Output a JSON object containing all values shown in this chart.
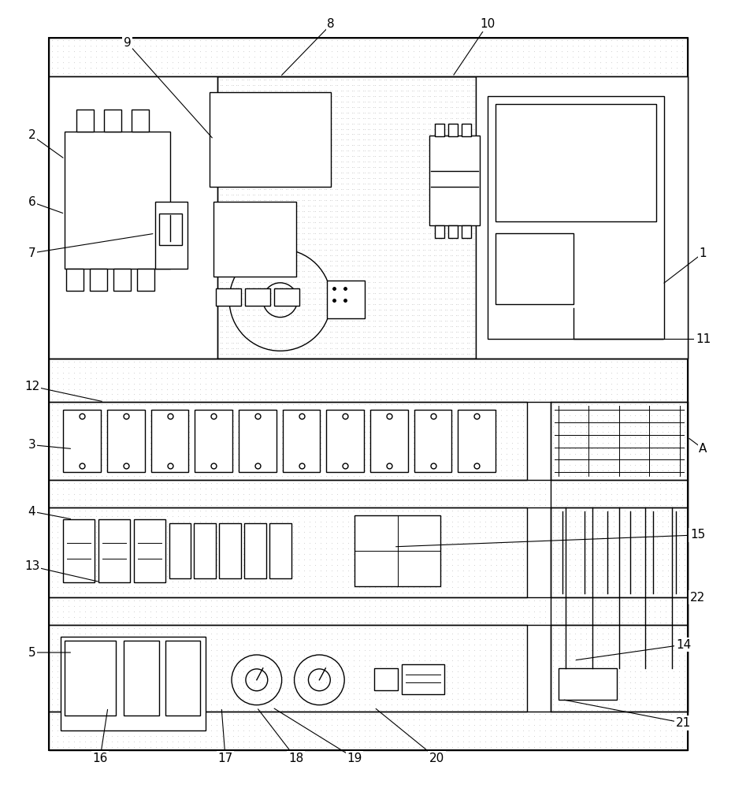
{
  "fig_width": 9.33,
  "fig_height": 10.0,
  "bg_color": "#ffffff",
  "line_color": "#000000",
  "dot_color": "#aaaaaa",
  "lw_main": 1.5,
  "lw_med": 1.0,
  "lw_thin": 0.7
}
